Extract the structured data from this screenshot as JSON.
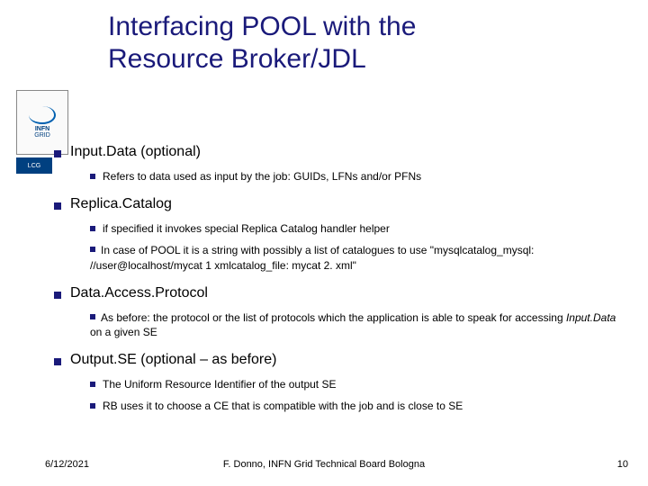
{
  "title_line1": "Interfacing POOL with the",
  "title_line2": "Resource Broker/JDL",
  "logo_text1": "INFN",
  "logo_text2": "GRID",
  "logo2_text": "LCG",
  "sections": [
    {
      "heading": "Input.Data (optional)",
      "items": [
        {
          "type": "sub",
          "text": "Refers to data used as input by the job: GUIDs, LFNs and/or PFNs"
        }
      ]
    },
    {
      "heading": "Replica.Catalog",
      "items": [
        {
          "type": "sub",
          "text": "if specified it invokes special Replica Catalog handler helper"
        },
        {
          "type": "flow",
          "text": "In case of POOL it is a string with possibly a list of catalogues to use \"mysqlcatalog_mysql: //user@localhost/mycat 1 xmlcatalog_file: mycat 2. xml\""
        }
      ]
    },
    {
      "heading": "Data.Access.Protocol",
      "items": [
        {
          "type": "flow",
          "text_before": "As before: the protocol or the list of protocols which the application is able to speak for accessing ",
          "italic": "Input.Data",
          "text_after": " on a given SE"
        }
      ]
    },
    {
      "heading": "Output.SE (optional – as before)",
      "items": [
        {
          "type": "sub",
          "text": "The Uniform Resource Identifier of the output SE"
        },
        {
          "type": "sub",
          "text": "RB uses it to choose a CE that is compatible with the job and is close to SE"
        }
      ]
    }
  ],
  "footer": {
    "date": "6/12/2021",
    "author": "F. Donno, INFN Grid Technical Board Bologna",
    "page": "10"
  }
}
